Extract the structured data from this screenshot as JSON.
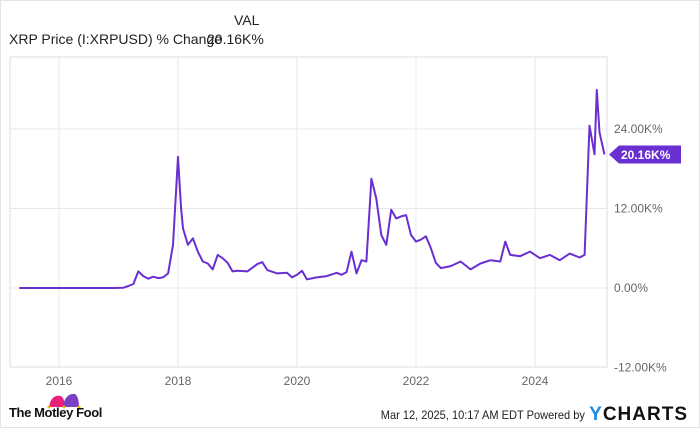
{
  "legend": {
    "column_header": "VAL",
    "series_label": "XRP Price (I:XRPUSD) % Change",
    "series_value": "20.16K%"
  },
  "colors": {
    "line": "#6a2fd1",
    "grid": "#e8e8e8",
    "axis_text": "#666666",
    "badge_bg": "#6a2fd1",
    "ycharts_blue": "#1c8be0",
    "motley_pink": "#e8217a",
    "motley_purple": "#7b3fc4"
  },
  "chart_data": {
    "type": "line",
    "title": "XRP Price (I:XRPUSD) % Change",
    "xlabel": "",
    "ylabel": "",
    "x_ticks": [
      "2016",
      "2018",
      "2020",
      "2022",
      "2024"
    ],
    "y_ticks": [
      "24.00K%",
      "12.00K%",
      "0.00%",
      "-12.00K%"
    ],
    "ylim": [
      -12000,
      34000
    ],
    "xlim": [
      "2015-05",
      "2025-03"
    ],
    "grid": true,
    "legend_position": "top-left",
    "last_value_label": "20.16K%",
    "series": [
      {
        "name": "XRP Price (I:XRPUSD) % Change",
        "unit": "%",
        "points": [
          [
            "2015-05",
            0
          ],
          [
            "2015-09",
            0
          ],
          [
            "2016-01",
            0
          ],
          [
            "2016-06",
            0
          ],
          [
            "2016-12",
            0
          ],
          [
            "2017-02",
            50
          ],
          [
            "2017-03",
            300
          ],
          [
            "2017-04",
            600
          ],
          [
            "2017-05",
            2500
          ],
          [
            "2017-06",
            1800
          ],
          [
            "2017-07",
            1400
          ],
          [
            "2017-08",
            1700
          ],
          [
            "2017-09",
            1500
          ],
          [
            "2017-10",
            1600
          ],
          [
            "2017-11",
            2200
          ],
          [
            "2017-12",
            6500
          ],
          [
            "2018-01",
            19800
          ],
          [
            "2018-01-20",
            12000
          ],
          [
            "2018-02",
            9000
          ],
          [
            "2018-03",
            6500
          ],
          [
            "2018-04",
            7500
          ],
          [
            "2018-05",
            5500
          ],
          [
            "2018-06",
            4000
          ],
          [
            "2018-07",
            3700
          ],
          [
            "2018-08",
            2800
          ],
          [
            "2018-09",
            5000
          ],
          [
            "2018-10",
            4500
          ],
          [
            "2018-11",
            3800
          ],
          [
            "2018-12",
            2500
          ],
          [
            "2019-01",
            2600
          ],
          [
            "2019-03",
            2500
          ],
          [
            "2019-05",
            3600
          ],
          [
            "2019-06",
            3900
          ],
          [
            "2019-07",
            2700
          ],
          [
            "2019-09",
            2200
          ],
          [
            "2019-11",
            2300
          ],
          [
            "2019-12",
            1600
          ],
          [
            "2020-01",
            2000
          ],
          [
            "2020-02",
            2600
          ],
          [
            "2020-03",
            1300
          ],
          [
            "2020-05",
            1600
          ],
          [
            "2020-07",
            1800
          ],
          [
            "2020-09",
            2300
          ],
          [
            "2020-10",
            2000
          ],
          [
            "2020-11",
            2400
          ],
          [
            "2020-12",
            5500
          ],
          [
            "2021-01",
            2200
          ],
          [
            "2021-02",
            4200
          ],
          [
            "2021-03",
            4000
          ],
          [
            "2021-04",
            16500
          ],
          [
            "2021-05",
            13500
          ],
          [
            "2021-06",
            8000
          ],
          [
            "2021-07",
            6500
          ],
          [
            "2021-08",
            11800
          ],
          [
            "2021-09",
            10500
          ],
          [
            "2021-10",
            10800
          ],
          [
            "2021-11",
            11000
          ],
          [
            "2021-12",
            8000
          ],
          [
            "2022-01",
            7000
          ],
          [
            "2022-02",
            7300
          ],
          [
            "2022-03",
            7800
          ],
          [
            "2022-04",
            6000
          ],
          [
            "2022-05",
            3800
          ],
          [
            "2022-06",
            3000
          ],
          [
            "2022-08",
            3300
          ],
          [
            "2022-10",
            4000
          ],
          [
            "2022-12",
            2800
          ],
          [
            "2023-02",
            3700
          ],
          [
            "2023-04",
            4200
          ],
          [
            "2023-06",
            4000
          ],
          [
            "2023-07",
            7000
          ],
          [
            "2023-08",
            5000
          ],
          [
            "2023-10",
            4800
          ],
          [
            "2023-12",
            5500
          ],
          [
            "2024-02",
            4500
          ],
          [
            "2024-04",
            5000
          ],
          [
            "2024-06",
            4200
          ],
          [
            "2024-08",
            5200
          ],
          [
            "2024-10",
            4600
          ],
          [
            "2024-11",
            5000
          ],
          [
            "2024-12",
            24500
          ],
          [
            "2025-01",
            20200
          ],
          [
            "2025-01-15",
            29900
          ],
          [
            "2025-02",
            23500
          ],
          [
            "2025-03",
            20160
          ]
        ]
      }
    ]
  },
  "footer": {
    "brand": "The Motley Fool",
    "timestamp": "Mar 12, 2025, 10:17 AM EDT",
    "powered_by": "Powered by",
    "ycharts_y": "Y",
    "ycharts_rest": "CHARTS"
  }
}
